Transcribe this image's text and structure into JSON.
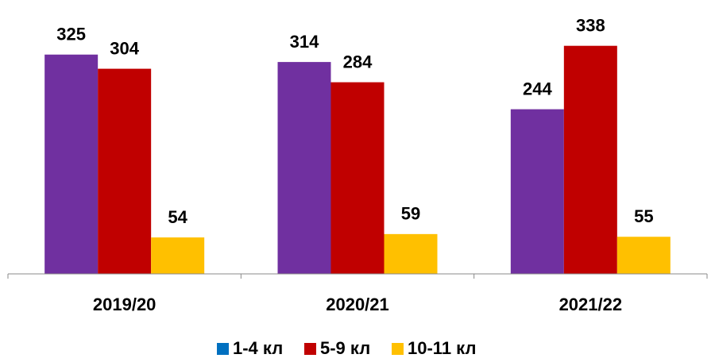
{
  "chart_data": {
    "type": "bar",
    "categories": [
      "2019/20",
      "2020/21",
      "2021/22"
    ],
    "series": [
      {
        "name": "1-4 кл",
        "color": "#7030a0",
        "legend_color": "#0070c0",
        "values": [
          325,
          314,
          244
        ]
      },
      {
        "name": "5-9 кл",
        "color": "#c00000",
        "legend_color": "#c00000",
        "values": [
          304,
          284,
          338
        ]
      },
      {
        "name": "10-11 кл",
        "color": "#ffc000",
        "legend_color": "#ffc000",
        "values": [
          54,
          59,
          55
        ]
      }
    ],
    "ylim": [
      0,
      400
    ],
    "grid": false,
    "legend": "bottom"
  }
}
